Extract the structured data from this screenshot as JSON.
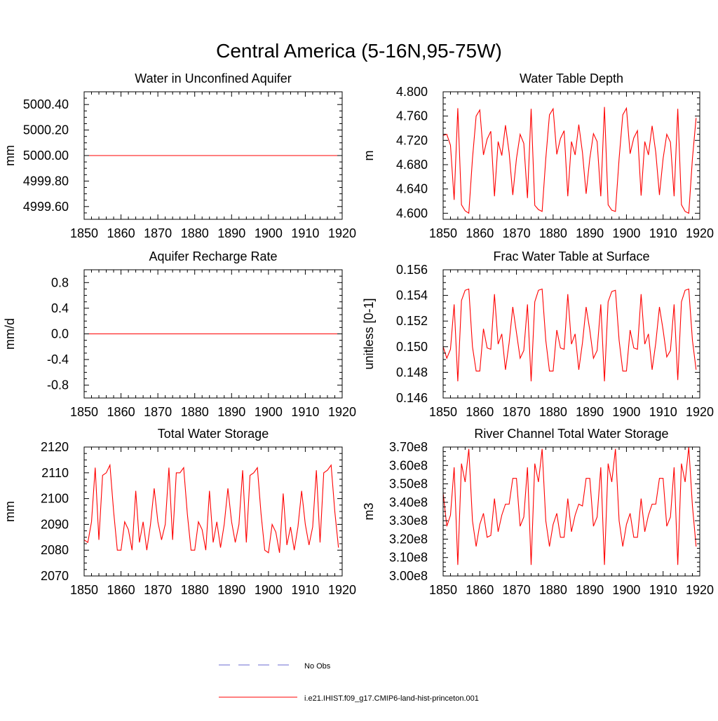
{
  "title": "Central America (5-16N,95-75W)",
  "colors": {
    "model": "#ff0000",
    "obs": "#6a6ad0",
    "axis": "#000000"
  },
  "legend": {
    "items": [
      {
        "label": "No Obs",
        "style": "dashed",
        "color": "#6a6ad0"
      },
      {
        "label": "i.e21.IHIST.f09_g17.CMIP6-land-hist-princeton.001",
        "style": "solid",
        "color": "#ff0000"
      }
    ]
  },
  "chart_data": [
    {
      "type": "line",
      "title": "Water in Unconfined Aquifer",
      "ylabel": "mm",
      "xlim": [
        1850,
        1920
      ],
      "ylim": [
        4999.5,
        5000.5
      ],
      "xticks": [
        1850,
        1860,
        1870,
        1880,
        1890,
        1900,
        1910,
        1920
      ],
      "yticks": [
        4999.6,
        4999.8,
        5000.0,
        5000.2,
        5000.4
      ],
      "yticklabels": [
        "4999.60",
        "4999.80",
        "5000.00",
        "5000.20",
        "5000.40"
      ],
      "series": [
        {
          "x_start": 1850,
          "x_end": 1919,
          "values": [
            5000.0,
            5000.0
          ]
        }
      ]
    },
    {
      "type": "line",
      "title": "Water Table Depth",
      "ylabel": "m",
      "xlim": [
        1850,
        1920
      ],
      "ylim": [
        4.59,
        4.8
      ],
      "xticks": [
        1850,
        1860,
        1870,
        1880,
        1890,
        1900,
        1910,
        1920
      ],
      "yticks": [
        4.6,
        4.64,
        4.68,
        4.72,
        4.76,
        4.8
      ],
      "yticklabels": [
        "4.600",
        "4.640",
        "4.680",
        "4.720",
        "4.760",
        "4.800"
      ],
      "series": [
        {
          "x_start": 1850,
          "x_end": 1919,
          "values": [
            4.728,
            4.73,
            4.712,
            4.622,
            4.773,
            4.614,
            4.604,
            4.6,
            4.69,
            4.76,
            4.77,
            4.696,
            4.722,
            4.735,
            4.628,
            4.718,
            4.695,
            4.745,
            4.7,
            4.63,
            4.69,
            4.73,
            4.715,
            4.625,
            4.772,
            4.613,
            4.606,
            4.603,
            4.69,
            4.762,
            4.772,
            4.697,
            4.723,
            4.736,
            4.628,
            4.718,
            4.696,
            4.746,
            4.7,
            4.632,
            4.69,
            4.731,
            4.718,
            4.628,
            4.775,
            4.614,
            4.605,
            4.603,
            4.69,
            4.762,
            4.773,
            4.698,
            4.724,
            4.736,
            4.629,
            4.718,
            4.696,
            4.744,
            4.7,
            4.63,
            4.69,
            4.73,
            4.717,
            4.628,
            4.772,
            4.614,
            4.603,
            4.6,
            4.69,
            4.757
          ]
        }
      ]
    },
    {
      "type": "line",
      "title": "Aquifer Recharge Rate",
      "ylabel": "mm/d",
      "xlim": [
        1850,
        1920
      ],
      "ylim": [
        -1.0,
        1.0
      ],
      "xticks": [
        1850,
        1860,
        1870,
        1880,
        1890,
        1900,
        1910,
        1920
      ],
      "yticks": [
        -0.8,
        -0.4,
        0.0,
        0.4,
        0.8
      ],
      "yticklabels": [
        "-0.8",
        "-0.4",
        "0.0",
        "0.4",
        "0.8"
      ],
      "series": [
        {
          "x_start": 1850,
          "x_end": 1919,
          "values": [
            0.0,
            0.0
          ]
        }
      ]
    },
    {
      "type": "line",
      "title": "Frac Water Table at Surface",
      "ylabel": "unitless [0-1]",
      "xlim": [
        1850,
        1920
      ],
      "ylim": [
        0.146,
        0.156
      ],
      "xticks": [
        1850,
        1860,
        1870,
        1880,
        1890,
        1900,
        1910,
        1920
      ],
      "yticks": [
        0.146,
        0.148,
        0.15,
        0.152,
        0.154,
        0.156
      ],
      "yticklabels": [
        "0.146",
        "0.148",
        "0.150",
        "0.152",
        "0.154",
        "0.156"
      ],
      "series": [
        {
          "x_start": 1850,
          "x_end": 1919,
          "values": [
            0.15,
            0.1491,
            0.1498,
            0.1533,
            0.1473,
            0.1536,
            0.1544,
            0.1545,
            0.15,
            0.1481,
            0.1481,
            0.1514,
            0.1499,
            0.1498,
            0.1541,
            0.1502,
            0.151,
            0.1482,
            0.1503,
            0.1531,
            0.1511,
            0.1491,
            0.1497,
            0.1533,
            0.1473,
            0.1535,
            0.1544,
            0.1545,
            0.1505,
            0.1481,
            0.1481,
            0.1513,
            0.1499,
            0.1498,
            0.1541,
            0.1502,
            0.151,
            0.1482,
            0.1503,
            0.1531,
            0.1513,
            0.1491,
            0.1497,
            0.1533,
            0.1473,
            0.1535,
            0.1543,
            0.1544,
            0.1505,
            0.1481,
            0.1481,
            0.1513,
            0.1499,
            0.1498,
            0.1541,
            0.1502,
            0.151,
            0.1482,
            0.1503,
            0.1531,
            0.1513,
            0.1492,
            0.1497,
            0.1533,
            0.1474,
            0.1535,
            0.1544,
            0.1545,
            0.1505,
            0.1482
          ]
        }
      ]
    },
    {
      "type": "line",
      "title": "Total Water Storage",
      "ylabel": "mm",
      "xlim": [
        1850,
        1920
      ],
      "ylim": [
        2070,
        2120
      ],
      "xticks": [
        1850,
        1860,
        1870,
        1880,
        1890,
        1900,
        1910,
        1920
      ],
      "yticks": [
        2070,
        2080,
        2090,
        2100,
        2110,
        2120
      ],
      "yticklabels": [
        "2070",
        "2080",
        "2090",
        "2100",
        "2110",
        "2120"
      ],
      "series": [
        {
          "x_start": 1850,
          "x_end": 1919,
          "values": [
            2084,
            2083,
            2091,
            2112,
            2084,
            2109,
            2110,
            2113,
            2095,
            2080,
            2080,
            2091,
            2088,
            2080,
            2103,
            2083,
            2091,
            2080,
            2090,
            2104,
            2091,
            2084,
            2090,
            2112,
            2084,
            2110,
            2110,
            2112,
            2094,
            2080,
            2080,
            2091,
            2088,
            2080,
            2103,
            2083,
            2091,
            2081,
            2090,
            2104,
            2091,
            2083,
            2090,
            2111,
            2083,
            2109,
            2110,
            2112,
            2094,
            2080,
            2079,
            2090,
            2087,
            2079,
            2102,
            2082,
            2089,
            2080,
            2089,
            2103,
            2090,
            2082,
            2089,
            2111,
            2083,
            2110,
            2111,
            2113,
            2095,
            2081
          ]
        }
      ]
    },
    {
      "type": "line",
      "title": "River Channel Total Water Storage",
      "ylabel": "m3",
      "xlim": [
        1850,
        1920
      ],
      "ylim": [
        300000000,
        370000000
      ],
      "xticks": [
        1850,
        1860,
        1870,
        1880,
        1890,
        1900,
        1910,
        1920
      ],
      "yticks": [
        300000000,
        310000000,
        320000000,
        330000000,
        340000000,
        350000000,
        360000000,
        370000000
      ],
      "yticklabels": [
        "3.00e8",
        "3.10e8",
        "3.20e8",
        "3.30e8",
        "3.40e8",
        "3.50e8",
        "3.60e8",
        "3.70e8"
      ],
      "series": [
        {
          "x_start": 1850,
          "x_end": 1919,
          "values": [
            345000000,
            327000000,
            333000000,
            359000000,
            306000000,
            361000000,
            351000000,
            369000000,
            330000000,
            316000000,
            328000000,
            334000000,
            321000000,
            322000000,
            342000000,
            324000000,
            333000000,
            339000000,
            339000000,
            353000000,
            353000000,
            327000000,
            332000000,
            359000000,
            306000000,
            361000000,
            351000000,
            369000000,
            330000000,
            316000000,
            328000000,
            334000000,
            321000000,
            321000000,
            342000000,
            324000000,
            333000000,
            339000000,
            338000000,
            353000000,
            353000000,
            327000000,
            332000000,
            359000000,
            306000000,
            361000000,
            351000000,
            369000000,
            330000000,
            316000000,
            328000000,
            334000000,
            321000000,
            321000000,
            342000000,
            324000000,
            333000000,
            339000000,
            339000000,
            353000000,
            353000000,
            327000000,
            332000000,
            359000000,
            306000000,
            361000000,
            351000000,
            370000000,
            338000000,
            316000000
          ]
        }
      ]
    }
  ]
}
